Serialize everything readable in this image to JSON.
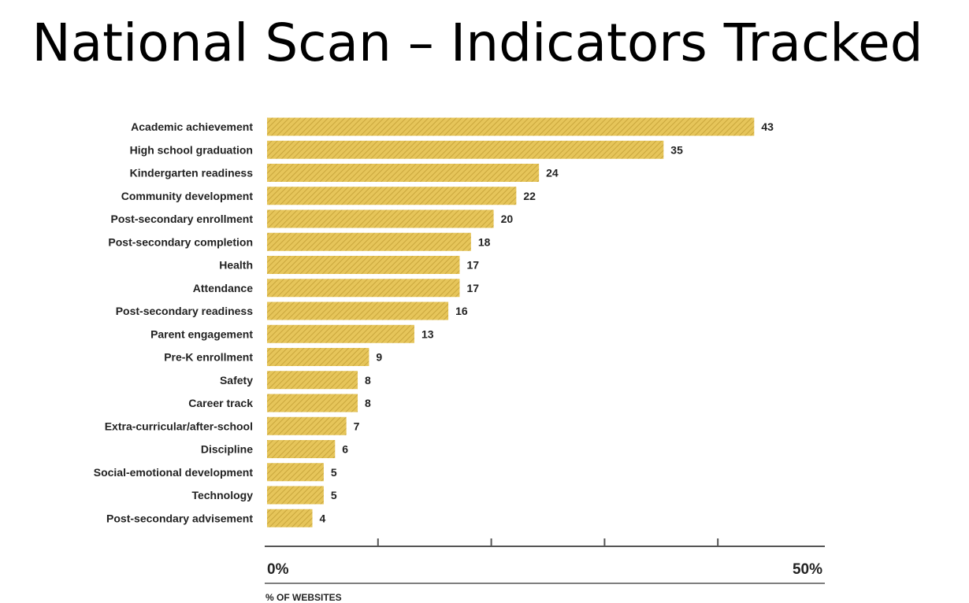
{
  "title": "National Scan – Indicators Tracked",
  "chart_data": {
    "type": "bar",
    "orientation": "horizontal",
    "categories": [
      "Academic achievement",
      "High school graduation",
      "Kindergarten readiness",
      "Community development",
      "Post-secondary enrollment",
      "Post-secondary completion",
      "Health",
      "Attendance",
      "Post-secondary readiness",
      "Parent engagement",
      "Pre-K enrollment",
      "Safety",
      "Career track",
      "Extra-curricular/after-school",
      "Discipline",
      "Social-emotional development",
      "Technology",
      "Post-secondary advisement"
    ],
    "values": [
      43,
      35,
      24,
      22,
      20,
      18,
      17,
      17,
      16,
      13,
      9,
      8,
      8,
      7,
      6,
      5,
      5,
      4
    ],
    "xlim": [
      0,
      50
    ],
    "tick_labels": [
      "0%",
      "50%"
    ],
    "xlabel": "% OF WEBSITES",
    "bar_color": "#e6c55a",
    "hatch_color": "#c9a63c",
    "text_color": "#222222",
    "axis_color": "#555555"
  }
}
